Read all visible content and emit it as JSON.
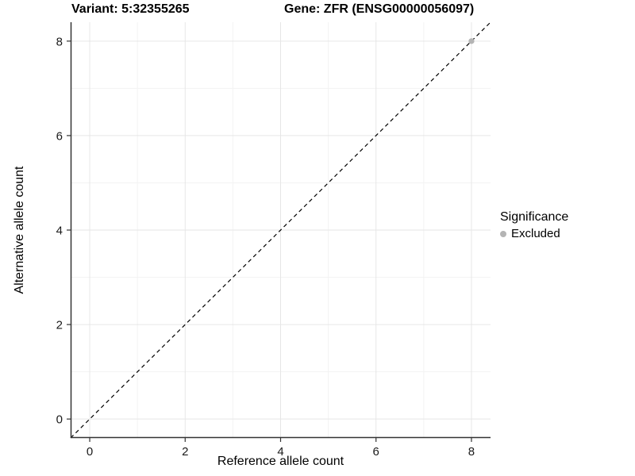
{
  "colors": {
    "background": "#ffffff",
    "grid_major": "#e6e6e6",
    "grid_minor": "#f3f3f3",
    "axis_line": "#333333",
    "tick_mark": "#333333",
    "tick_text": "#1a1a1a",
    "identity_line": "#000000",
    "excluded_point": "#b4b4b4"
  },
  "legend": {
    "title": "Significance",
    "items": [
      {
        "label": "Excluded",
        "color": "#b4b4b4"
      }
    ]
  },
  "chart_data": {
    "type": "scatter",
    "title_left": "Variant: 5:32355265",
    "title_right": "Gene: ZFR (ENSG00000056097)",
    "xlabel": "Reference allele count",
    "ylabel": "Alternative allele count",
    "xlim": [
      -0.4,
      8.4
    ],
    "ylim": [
      -0.4,
      8.4
    ],
    "xticks": [
      0,
      2,
      4,
      6,
      8
    ],
    "yticks": [
      0,
      2,
      4,
      6,
      8
    ],
    "minor_xticks": [
      1,
      3,
      5,
      7
    ],
    "minor_yticks": [
      1,
      3,
      5,
      7
    ],
    "grid": true,
    "legend_position": "right",
    "series": [
      {
        "name": "Excluded",
        "color": "#b4b4b4",
        "points": [
          {
            "x": 8,
            "y": 8
          }
        ]
      }
    ],
    "reference_line": {
      "slope": 1,
      "intercept": 0,
      "style": "dashed",
      "color": "#000000"
    }
  }
}
